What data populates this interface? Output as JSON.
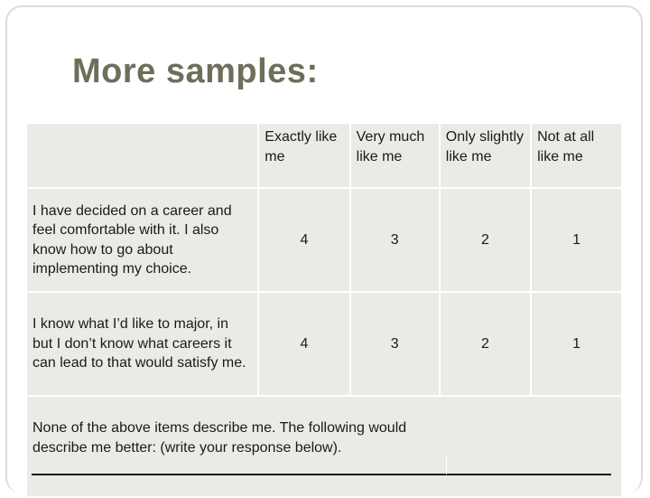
{
  "slide": {
    "title": "More samples:"
  },
  "table": {
    "headers": [
      "",
      "Exactly like me",
      "Very much like me",
      "Only slightly like me",
      "Not at all like me"
    ],
    "rows": [
      {
        "statement": "I have decided on a career and feel comfortable with it. I also know how to go about implementing my choice.",
        "values": [
          "4",
          "3",
          "2",
          "1"
        ]
      },
      {
        "statement": "I know what I’d like to major, in but I don’t know what careers it can lead to that would satisfy me.",
        "values": [
          "4",
          "3",
          "2",
          "1"
        ]
      }
    ],
    "note": "None of the above items describe me. The following would describe me better: (write your response below)."
  }
}
